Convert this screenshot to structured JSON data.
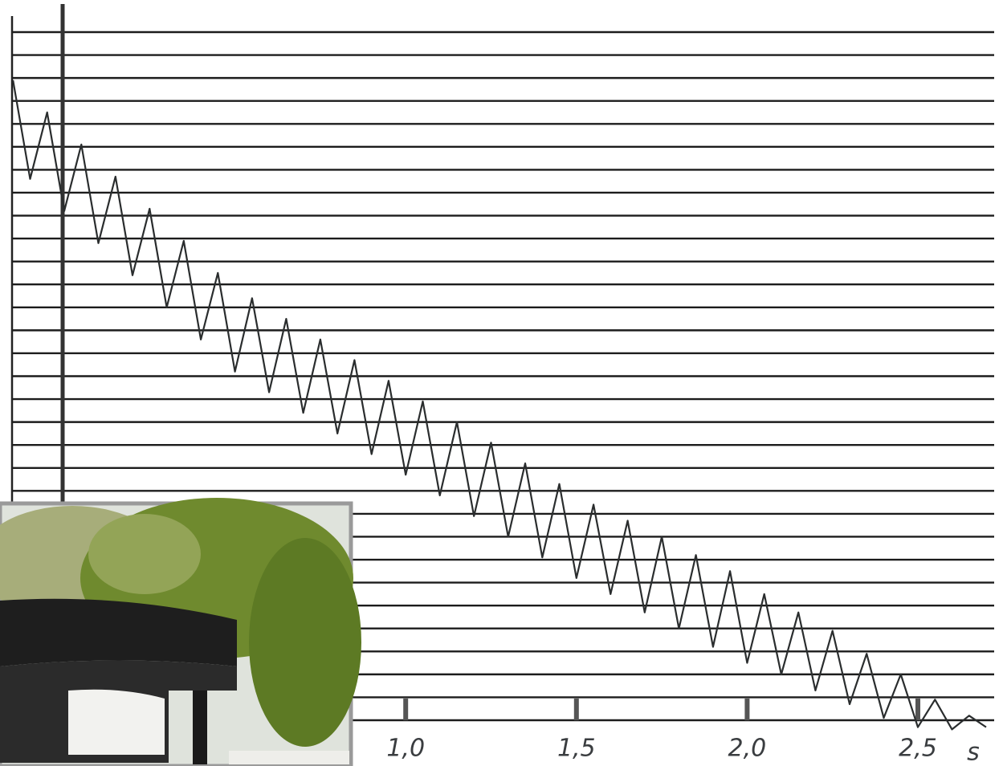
{
  "chart_data": {
    "type": "line",
    "x": [
      -0.15,
      -0.1,
      -0.05,
      0.0,
      0.05,
      0.1,
      0.15,
      0.2,
      0.25,
      0.3,
      0.35,
      0.4,
      0.45,
      0.5,
      0.55,
      0.6,
      0.65,
      0.7,
      0.75,
      0.8,
      0.85,
      0.9,
      0.95,
      1.0,
      1.05,
      1.1,
      1.15,
      1.2,
      1.25,
      1.3,
      1.35,
      1.4,
      1.45,
      1.5,
      1.55,
      1.6,
      1.65,
      1.7,
      1.75,
      1.8,
      1.85,
      1.9,
      1.95,
      2.0,
      2.05,
      2.1,
      2.15,
      2.2,
      2.25,
      2.3,
      2.35,
      2.4,
      2.45,
      2.5,
      2.55,
      2.6,
      2.65,
      2.7
    ],
    "values": [
      27.9,
      23.6,
      26.5,
      22.2,
      25.1,
      20.8,
      23.7,
      19.4,
      22.3,
      18.0,
      20.9,
      16.6,
      19.5,
      15.2,
      18.4,
      14.3,
      17.5,
      13.4,
      16.6,
      12.5,
      15.7,
      11.6,
      14.8,
      10.7,
      13.9,
      9.8,
      13.0,
      8.9,
      12.1,
      8.0,
      11.2,
      7.1,
      10.3,
      6.2,
      9.4,
      5.5,
      8.7,
      4.7,
      8.0,
      4.0,
      7.2,
      3.2,
      6.5,
      2.5,
      5.5,
      2.0,
      4.7,
      1.3,
      3.9,
      0.7,
      2.9,
      0.1,
      2.0,
      -0.3,
      0.9,
      -0.4,
      0.2,
      -0.3
    ],
    "color": "#2a2d2e",
    "xlim": [
      -0.15,
      2.72
    ],
    "xticks": [
      {
        "value": 1.0,
        "label": "1,0"
      },
      {
        "value": 1.5,
        "label": "1,5"
      },
      {
        "value": 2.0,
        "label": "2,0"
      },
      {
        "value": 2.5,
        "label": "2,5"
      }
    ],
    "x_label": "s",
    "ylim": [
      0,
      30
    ],
    "grid": true
  }
}
